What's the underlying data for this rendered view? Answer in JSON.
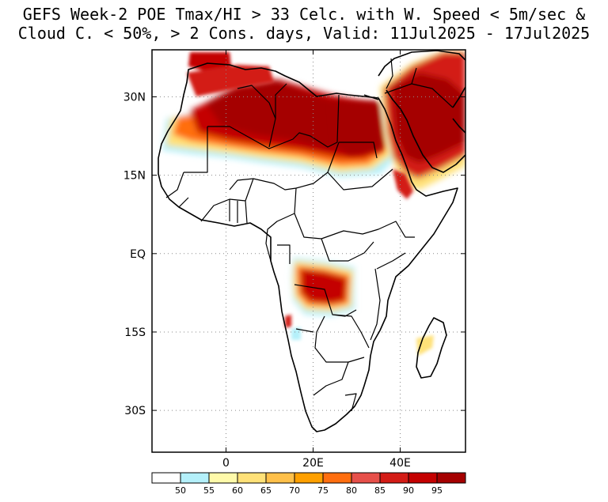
{
  "title": {
    "line1": "GEFS Week-2 POE Tmax/HI > 33 Celc. with W. Speed < 5m/sec &",
    "line2": "Cloud C. < 50%, > 2 Cons. days, Valid: 11Jul2025 - 17Jul2025"
  },
  "map": {
    "region": "Africa",
    "lat_range": [
      -38,
      39
    ],
    "lon_range": [
      -17,
      55
    ],
    "lat_ticks": [
      {
        "label": "30N",
        "value": 30
      },
      {
        "label": "15N",
        "value": 15
      },
      {
        "label": "EQ",
        "value": 0
      },
      {
        "label": "15S",
        "value": -15
      },
      {
        "label": "30S",
        "value": -30
      }
    ],
    "lon_ticks": [
      {
        "label": "0",
        "value": 0
      },
      {
        "label": "20E",
        "value": 20
      },
      {
        "label": "40E",
        "value": 40
      }
    ],
    "gridlines": "dotted"
  },
  "colorbar": {
    "labels": [
      "50",
      "55",
      "60",
      "65",
      "70",
      "75",
      "80",
      "85",
      "90",
      "95"
    ],
    "colors": [
      "#ffffff",
      "#b4f0fa",
      "#fffaaa",
      "#ffe178",
      "#ffc04a",
      "#ffa000",
      "#ff6e0f",
      "#e6504a",
      "#d31c16",
      "#c40000",
      "#a50000"
    ]
  },
  "probability_regions": [
    {
      "name": "Sahara and North Africa",
      "max_category": "95+"
    },
    {
      "name": "Egypt and Arabian Peninsula",
      "max_category": "95+"
    },
    {
      "name": "Horn of Africa coast",
      "max_category": "90-95"
    },
    {
      "name": "Angola and southern DR Congo",
      "max_category": "90-95"
    },
    {
      "name": "Mozambique Channel coast",
      "max_category": "60-65"
    }
  ]
}
